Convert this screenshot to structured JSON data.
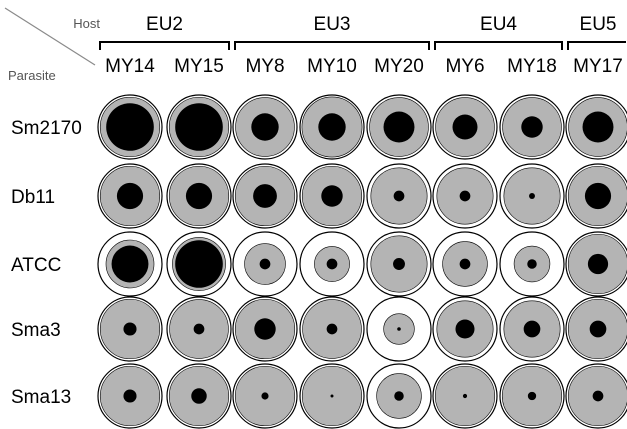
{
  "chart_data": {
    "type": "heatmap",
    "encoding": "nested circles per cell: outer ring, grey disc, black core",
    "corner_labels": {
      "host": "Host",
      "parasite": "Parasite"
    },
    "host_groups": [
      {
        "name": "EU2",
        "columns": [
          "MY14",
          "MY15"
        ]
      },
      {
        "name": "EU3",
        "columns": [
          "MY8",
          "MY10",
          "MY20"
        ]
      },
      {
        "name": "EU4",
        "columns": [
          "MY6",
          "MY18"
        ]
      },
      {
        "name": "EU5",
        "columns": [
          "MY17"
        ]
      }
    ],
    "columns": [
      "MY14",
      "MY15",
      "MY8",
      "MY10",
      "MY20",
      "MY6",
      "MY18",
      "MY17"
    ],
    "rows": [
      "Sm2170",
      "Db11",
      "ATCC",
      "Sma3",
      "Sma13"
    ],
    "grey_disc_fraction": [
      [
        0.93,
        0.93,
        0.92,
        0.94,
        0.92,
        0.92,
        0.92,
        0.92
      ],
      [
        0.93,
        0.93,
        0.93,
        0.93,
        0.88,
        0.88,
        0.88,
        0.93
      ],
      [
        0.75,
        0.83,
        0.64,
        0.55,
        0.88,
        0.7,
        0.56,
        0.93
      ],
      [
        0.93,
        0.92,
        0.93,
        0.92,
        0.48,
        0.88,
        0.88,
        0.93
      ],
      [
        0.93,
        0.93,
        0.93,
        0.93,
        0.7,
        0.93,
        0.93,
        0.93
      ]
    ],
    "black_core_fraction": [
      [
        0.8,
        0.8,
        0.46,
        0.46,
        0.52,
        0.42,
        0.36,
        0.52
      ],
      [
        0.44,
        0.44,
        0.4,
        0.36,
        0.18,
        0.18,
        0.1,
        0.44
      ],
      [
        0.62,
        0.8,
        0.18,
        0.18,
        0.2,
        0.18,
        0.16,
        0.34
      ],
      [
        0.22,
        0.18,
        0.36,
        0.18,
        0.06,
        0.32,
        0.28,
        0.28
      ],
      [
        0.22,
        0.26,
        0.12,
        0.05,
        0.16,
        0.07,
        0.14,
        0.18
      ]
    ],
    "colors": {
      "ring": "#000000",
      "fill": "#ffffff",
      "grey": "#b4b4b4",
      "core": "#000000",
      "corner_text": "#555555"
    }
  }
}
